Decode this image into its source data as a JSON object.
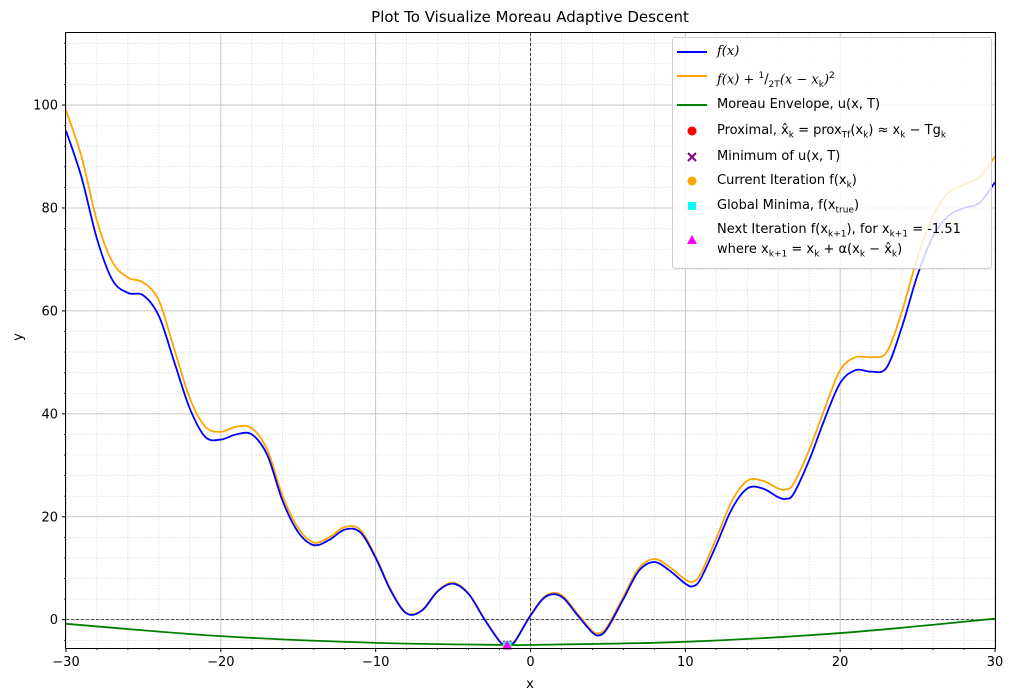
{
  "chart_data": {
    "type": "line",
    "title": "Plot To Visualize Moreau Adaptive Descent",
    "xlabel": "x",
    "ylabel": "y",
    "xlim": [
      -30,
      30
    ],
    "ylim": [
      -5.5,
      114
    ],
    "x_ticks": [
      -30,
      -20,
      -10,
      0,
      10,
      20,
      30
    ],
    "x_tick_labels": [
      "−30",
      "−20",
      "−10",
      "0",
      "10",
      "20",
      "30"
    ],
    "y_ticks": [
      0,
      20,
      40,
      60,
      80,
      100
    ],
    "y_tick_labels": [
      "0",
      "20",
      "40",
      "60",
      "80",
      "100"
    ],
    "grid": true,
    "legend_position": "top-right",
    "reference_lines": {
      "x": 0,
      "y": 0
    },
    "series": [
      {
        "name": "f(x)",
        "kind": "line",
        "color": "#0000ff",
        "x": [
          -30,
          -29,
          -28,
          -27,
          -26,
          -25,
          -24,
          -23,
          -22,
          -21,
          -20,
          -19,
          -18,
          -17,
          -16,
          -15,
          -14,
          -13,
          -12,
          -11,
          -10,
          -9,
          -8,
          -7,
          -6,
          -5,
          -4,
          -3,
          -2,
          -1.5,
          -1,
          0,
          1,
          2,
          3,
          4,
          4.5,
          5,
          6,
          7,
          8,
          9,
          10,
          10.5,
          11,
          12,
          13,
          14,
          15,
          16,
          16.5,
          17,
          18,
          19,
          20,
          21,
          22,
          23,
          24,
          25,
          26,
          27,
          28,
          29,
          30
        ],
        "y": [
          95,
          86,
          74,
          66,
          63.5,
          63,
          59,
          50,
          41,
          35.5,
          35,
          36,
          36,
          32,
          23,
          17,
          14.5,
          15.5,
          17.5,
          17,
          12,
          5.5,
          1.2,
          1.8,
          5.5,
          7,
          5,
          0.2,
          -4.2,
          -5,
          -4.2,
          0.8,
          4.5,
          4.5,
          1,
          -2.5,
          -3,
          -1.5,
          4,
          9.5,
          11.2,
          9.5,
          7,
          6.5,
          8,
          14.5,
          21.5,
          25.5,
          25.5,
          23.8,
          23.5,
          24.5,
          31,
          39,
          46,
          48.5,
          48.2,
          49,
          57,
          67,
          74.5,
          78.5,
          80,
          81,
          85
        ]
      },
      {
        "name": "f(x) + (1/2T)(x − x_k)^2",
        "kind": "line",
        "color": "#ffa500",
        "x": [
          -30,
          -29,
          -28,
          -27,
          -26,
          -25,
          -24,
          -23,
          -22,
          -21,
          -20,
          -19,
          -18,
          -17,
          -16,
          -15,
          -14,
          -13,
          -12,
          -11,
          -10,
          -9,
          -8,
          -7,
          -6,
          -5,
          -4,
          -3,
          -2,
          -1.5,
          -1,
          0,
          1,
          2,
          3,
          4,
          4.5,
          5,
          6,
          7,
          8,
          9,
          10,
          10.5,
          11,
          12,
          13,
          14,
          15,
          16,
          16.5,
          17,
          18,
          19,
          20,
          21,
          22,
          23,
          24,
          25,
          26,
          27,
          28,
          29,
          30
        ],
        "y": [
          99,
          90,
          77.5,
          69.5,
          66.5,
          65.5,
          62,
          52.5,
          43,
          37.5,
          36.5,
          37.5,
          37.2,
          33,
          24,
          17.8,
          15,
          16,
          18,
          17.5,
          12.3,
          5.7,
          1.3,
          1.9,
          5.6,
          7.2,
          5.1,
          0.3,
          -4.1,
          -5,
          -4.1,
          0.9,
          4.7,
          4.8,
          1.3,
          -2.2,
          -2.6,
          -1.1,
          4.5,
          10,
          11.8,
          10.2,
          7.8,
          7.4,
          9,
          15.8,
          23,
          27,
          27,
          25.5,
          25.3,
          26.5,
          33,
          41,
          48.5,
          51,
          51,
          52,
          60,
          70.5,
          78.5,
          83,
          84.5,
          86,
          90
        ]
      },
      {
        "name": "Moreau Envelope, u(x, T)",
        "kind": "line",
        "color": "#008000",
        "x": [
          -30,
          -20,
          -10,
          -1.5,
          0,
          10,
          20,
          30
        ],
        "y": [
          -0.8,
          -3.2,
          -4.5,
          -4.9,
          -4.9,
          -4.3,
          -2.6,
          0.2
        ]
      },
      {
        "name": "Proximal, x̂_k = prox_Tf(x_k) ≈ x_k − Tg_k",
        "kind": "scatter",
        "marker": "circle",
        "color": "#ff0000",
        "x": [
          -1.5
        ],
        "y": [
          -5
        ]
      },
      {
        "name": "Minimum of u(x, T)",
        "kind": "scatter",
        "marker": "x",
        "color": "#800080",
        "x": [
          -1.5
        ],
        "y": [
          -4.9
        ]
      },
      {
        "name": "Current Iteration f(x_k)",
        "kind": "scatter",
        "marker": "circle",
        "color": "#ffa500",
        "x": [
          -1.5
        ],
        "y": [
          -5
        ]
      },
      {
        "name": "Global Minima, f(x_true)",
        "kind": "scatter",
        "marker": "square",
        "color": "#00ffff",
        "x": [
          -1.5
        ],
        "y": [
          -5
        ]
      },
      {
        "name": "Next Iteration f(x_{k+1}), for x_{k+1} = -1.51 where x_{k+1} = x_k + α(x_k − x̂_k)",
        "kind": "scatter",
        "marker": "triangle",
        "color": "#ff00ff",
        "x": [
          -1.51
        ],
        "y": [
          -5
        ]
      }
    ]
  },
  "legend": {
    "f": "f(x)",
    "quad_prefix": "f(x) + ",
    "quad_frac_num": "1",
    "quad_frac_den": "2T",
    "quad_suffix": "(x − x",
    "quad_sub": "k",
    "quad_end": ")",
    "quad_sup": "2",
    "moreau": "Moreau Envelope, u(x, T)",
    "prox_a": "Proximal, x̂",
    "prox_sub1": "k",
    "prox_b": " = prox",
    "prox_sub2": "Tf",
    "prox_c": "(x",
    "prox_sub3": "k",
    "prox_d": ") ≈ x",
    "prox_sub4": "k",
    "prox_e": " − Tg",
    "prox_sub5": "k",
    "minimum": "Minimum of u(x, T)",
    "current_a": "Current Iteration f(x",
    "current_sub": "k",
    "current_b": ")",
    "global_a": "Global Minima, f(x",
    "global_sub": "true",
    "global_b": ")",
    "next_a": "Next Iteration f(x",
    "next_sub1": "k+1",
    "next_b": "), for x",
    "next_sub2": "k+1",
    "next_c": " = -1.51",
    "where_a": "where x",
    "where_sub1": "k+1",
    "where_b": " = x",
    "where_sub2": "k",
    "where_c": " + α(x",
    "where_sub3": "k",
    "where_d": " − x̂",
    "where_sub4": "k",
    "where_e": ")"
  }
}
